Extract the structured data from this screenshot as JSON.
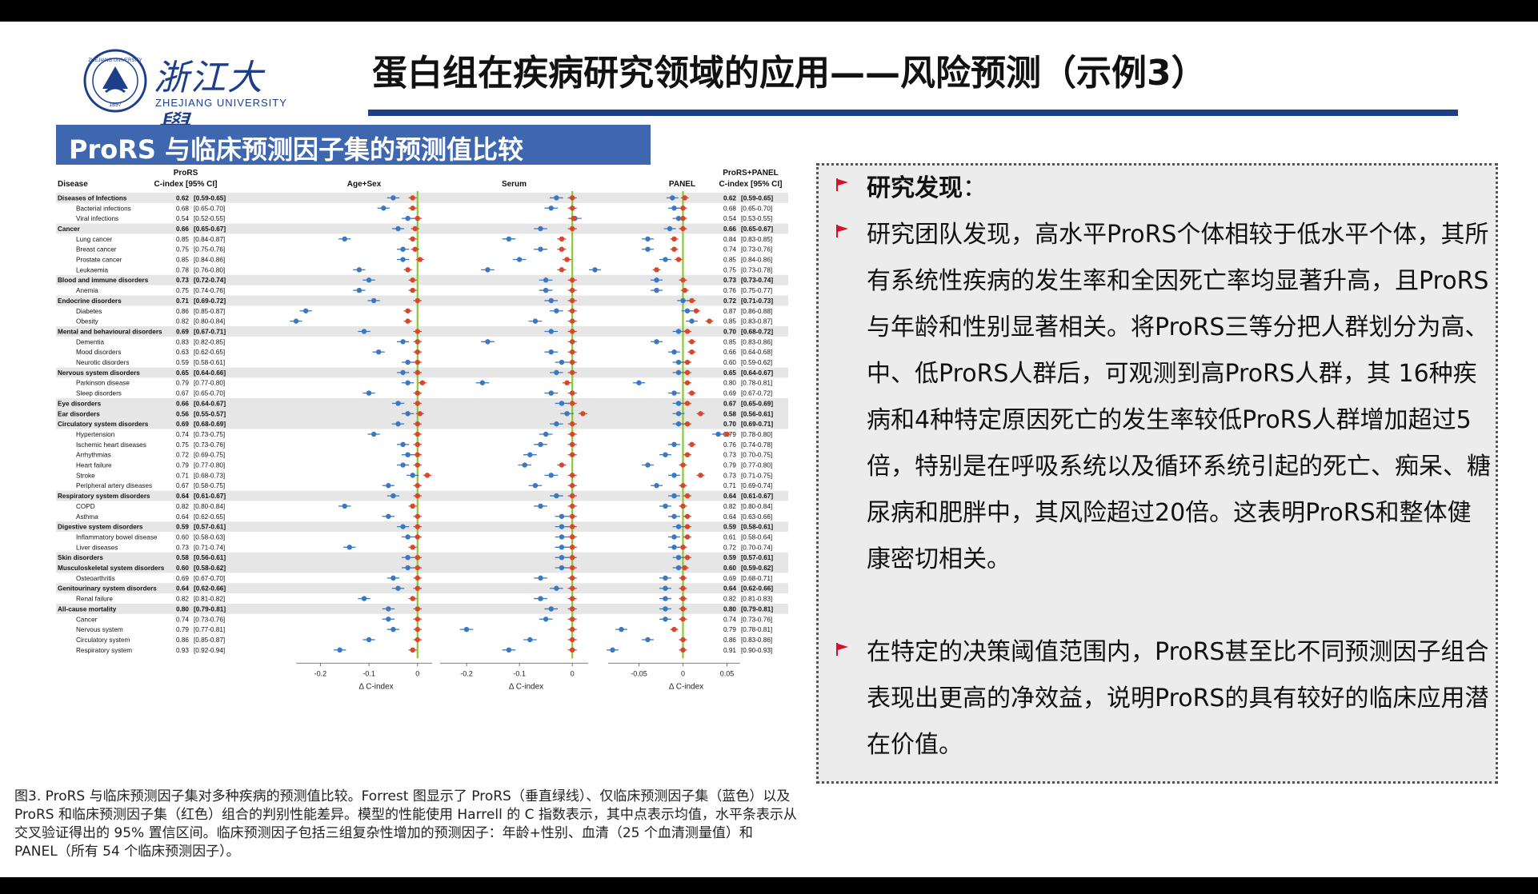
{
  "header": {
    "logo_text": "浙江大學",
    "logo_sub": "ZHEJIANG UNIVERSITY",
    "logo_seal_text": "ZHEJIANG UNIVERSITY",
    "logo_seal_year": "1897",
    "title": "蛋白组在疾病研究领域的应用——风险预测（示例3）"
  },
  "subtitle": "ProRS 与临床预测因子集的预测值比较",
  "figure": {
    "col_disease": "Disease",
    "col_prors_1": "ProRS",
    "col_prors_2": "C-index [95% CI]",
    "col_combo_1": "ProRS+PANEL",
    "col_combo_2": "C-index [95% CI]",
    "panel_titles": [
      "Age+Sex",
      "Serum",
      "PANEL"
    ],
    "x_axis_label": "Δ C-index",
    "x_ticks": [
      [
        "-0.2",
        "-0.1",
        "0"
      ],
      [
        "-0.2",
        "-0.1",
        "0"
      ],
      [
        "-0.05",
        "0",
        "0.05"
      ]
    ]
  },
  "chart_data": {
    "type": "forest",
    "x_label": "Δ C-index",
    "grid": false,
    "rows": [
      {
        "disease": "Diseases of Infections",
        "group": true,
        "prors": "0.62",
        "prors_ci": "[0.59-0.65]",
        "combo": "0.62",
        "combo_ci": "[0.59-0.65]",
        "d": [
          [
            -0.05,
            -0.01
          ],
          [
            -0.03,
            0.0
          ],
          [
            -0.012,
            0.002
          ]
        ]
      },
      {
        "disease": "Bacterial infections",
        "group": false,
        "prors": "0.68",
        "prors_ci": "[0.65-0.70]",
        "combo": "0.68",
        "combo_ci": "[0.65-0.70]",
        "d": [
          [
            -0.07,
            -0.01
          ],
          [
            -0.04,
            0.0
          ],
          [
            -0.01,
            0.0
          ]
        ]
      },
      {
        "disease": "Viral infections",
        "group": false,
        "prors": "0.54",
        "prors_ci": "[0.52-0.55]",
        "combo": "0.54",
        "combo_ci": "[0.53-0.55]",
        "d": [
          [
            -0.02,
            0.0
          ],
          [
            0.005,
            0.002
          ],
          [
            -0.005,
            0.0
          ]
        ]
      },
      {
        "disease": "Cancer",
        "group": true,
        "prors": "0.66",
        "prors_ci": "[0.65-0.67]",
        "combo": "0.66",
        "combo_ci": "[0.65-0.67]",
        "d": [
          [
            -0.04,
            -0.005
          ],
          [
            -0.06,
            0.0
          ],
          [
            -0.015,
            0.0
          ]
        ]
      },
      {
        "disease": "Lung cancer",
        "group": false,
        "prors": "0.85",
        "prors_ci": "[0.84-0.87]",
        "combo": "0.84",
        "combo_ci": "[0.83-0.85]",
        "d": [
          [
            -0.15,
            -0.01
          ],
          [
            -0.12,
            -0.02
          ],
          [
            -0.04,
            -0.01
          ]
        ]
      },
      {
        "disease": "Breast cancer",
        "group": false,
        "prors": "0.75",
        "prors_ci": "[0.75-0.76]",
        "combo": "0.74",
        "combo_ci": "[0.73-0.76]",
        "d": [
          [
            -0.03,
            -0.005
          ],
          [
            -0.06,
            -0.02
          ],
          [
            -0.04,
            -0.01
          ]
        ]
      },
      {
        "disease": "Prostate cancer",
        "group": false,
        "prors": "0.85",
        "prors_ci": "[0.84-0.86]",
        "combo": "0.85",
        "combo_ci": "[0.84-0.86]",
        "d": [
          [
            -0.03,
            0.005
          ],
          [
            -0.1,
            -0.01
          ],
          [
            -0.02,
            -0.005
          ]
        ]
      },
      {
        "disease": "Leukaemia",
        "group": false,
        "prors": "0.78",
        "prors_ci": "[0.76-0.80]",
        "combo": "0.75",
        "combo_ci": "[0.73-0.78]",
        "d": [
          [
            -0.12,
            -0.02
          ],
          [
            -0.16,
            -0.02
          ],
          [
            -0.1,
            -0.03
          ]
        ]
      },
      {
        "disease": "Blood and immune disorders",
        "group": true,
        "prors": "0.73",
        "prors_ci": "[0.72-0.74]",
        "combo": "0.73",
        "combo_ci": "[0.73-0.74]",
        "d": [
          [
            -0.1,
            -0.01
          ],
          [
            -0.05,
            0.0
          ],
          [
            -0.03,
            0.0
          ]
        ]
      },
      {
        "disease": "Anemia",
        "group": false,
        "prors": "0.75",
        "prors_ci": "[0.74-0.76]",
        "combo": "0.76",
        "combo_ci": "[0.75-0.77]",
        "d": [
          [
            -0.12,
            -0.01
          ],
          [
            -0.05,
            0.0
          ],
          [
            -0.03,
            0.002
          ]
        ]
      },
      {
        "disease": "Endocrine disorders",
        "group": true,
        "prors": "0.71",
        "prors_ci": "[0.69-0.72]",
        "combo": "0.72",
        "combo_ci": "[0.71-0.73]",
        "d": [
          [
            -0.09,
            0.0
          ],
          [
            -0.04,
            0.0
          ],
          [
            0.0,
            0.01
          ]
        ]
      },
      {
        "disease": "Diabetes",
        "group": false,
        "prors": "0.86",
        "prors_ci": "[0.85-0.87]",
        "combo": "0.87",
        "combo_ci": "[0.86-0.88]",
        "d": [
          [
            -0.23,
            -0.02
          ],
          [
            -0.03,
            0.0
          ],
          [
            0.005,
            0.015
          ]
        ]
      },
      {
        "disease": "Obesity",
        "group": false,
        "prors": "0.82",
        "prors_ci": "[0.80-0.84]",
        "combo": "0.85",
        "combo_ci": "[0.83-0.87]",
        "d": [
          [
            -0.25,
            -0.02
          ],
          [
            -0.07,
            0.0
          ],
          [
            0.01,
            0.03
          ]
        ]
      },
      {
        "disease": "Mental and behavioural disorders",
        "group": true,
        "prors": "0.69",
        "prors_ci": "[0.67-0.71]",
        "combo": "0.70",
        "combo_ci": "[0.68-0.72]",
        "d": [
          [
            -0.11,
            0.0
          ],
          [
            -0.04,
            0.0
          ],
          [
            -0.005,
            0.005
          ]
        ]
      },
      {
        "disease": "Dementia",
        "group": false,
        "prors": "0.83",
        "prors_ci": "[0.82-0.85]",
        "combo": "0.85",
        "combo_ci": "[0.83-0.86]",
        "d": [
          [
            -0.03,
            0.0
          ],
          [
            -0.16,
            0.0
          ],
          [
            -0.03,
            0.01
          ]
        ]
      },
      {
        "disease": "Mood disorders",
        "group": false,
        "prors": "0.63",
        "prors_ci": "[0.62-0.65]",
        "combo": "0.66",
        "combo_ci": "[0.64-0.68]",
        "d": [
          [
            -0.08,
            0.0
          ],
          [
            -0.04,
            0.0
          ],
          [
            -0.01,
            0.01
          ]
        ]
      },
      {
        "disease": "Neurotic disorders",
        "group": false,
        "prors": "0.59",
        "prors_ci": "[0.58-0.61]",
        "combo": "0.60",
        "combo_ci": "[0.59-0.62]",
        "d": [
          [
            -0.02,
            0.0
          ],
          [
            -0.02,
            0.0
          ],
          [
            -0.005,
            0.005
          ]
        ]
      },
      {
        "disease": "Nervous system disorders",
        "group": true,
        "prors": "0.65",
        "prors_ci": "[0.64-0.66]",
        "combo": "0.65",
        "combo_ci": "[0.64-0.67]",
        "d": [
          [
            -0.03,
            0.0
          ],
          [
            -0.03,
            0.0
          ],
          [
            -0.005,
            0.005
          ]
        ]
      },
      {
        "disease": "Parkinson disease",
        "group": false,
        "prors": "0.79",
        "prors_ci": "[0.77-0.80]",
        "combo": "0.80",
        "combo_ci": "[0.78-0.81]",
        "d": [
          [
            -0.02,
            0.01
          ],
          [
            -0.17,
            -0.01
          ],
          [
            -0.05,
            0.005
          ]
        ]
      },
      {
        "disease": "Sleep disorders",
        "group": false,
        "prors": "0.67",
        "prors_ci": "[0.65-0.70]",
        "combo": "0.69",
        "combo_ci": "[0.67-0.72]",
        "d": [
          [
            -0.1,
            0.0
          ],
          [
            -0.04,
            0.0
          ],
          [
            -0.01,
            0.01
          ]
        ]
      },
      {
        "disease": "Eye disorders",
        "group": true,
        "prors": "0.66",
        "prors_ci": "[0.64-0.67]",
        "combo": "0.67",
        "combo_ci": "[0.65-0.69]",
        "d": [
          [
            -0.04,
            0.0
          ],
          [
            -0.02,
            0.0
          ],
          [
            -0.005,
            0.005
          ]
        ]
      },
      {
        "disease": "Ear disorders",
        "group": true,
        "prors": "0.56",
        "prors_ci": "[0.55-0.57]",
        "combo": "0.58",
        "combo_ci": "[0.56-0.61]",
        "d": [
          [
            -0.02,
            0.005
          ],
          [
            -0.01,
            0.02
          ],
          [
            -0.005,
            0.02
          ]
        ]
      },
      {
        "disease": "Circulatory system disorders",
        "group": true,
        "prors": "0.69",
        "prors_ci": "[0.68-0.69]",
        "combo": "0.70",
        "combo_ci": "[0.69-0.71]",
        "d": [
          [
            -0.04,
            0.0
          ],
          [
            -0.03,
            0.0
          ],
          [
            -0.005,
            0.005
          ]
        ]
      },
      {
        "disease": "Hypertension",
        "group": false,
        "prors": "0.74",
        "prors_ci": "[0.73-0.75]",
        "combo": "0.79",
        "combo_ci": "[0.78-0.80]",
        "d": [
          [
            -0.09,
            0.0
          ],
          [
            -0.05,
            0.0
          ],
          [
            0.04,
            0.05
          ]
        ]
      },
      {
        "disease": "Ischemic heart diseases",
        "group": false,
        "prors": "0.75",
        "prors_ci": "[0.73-0.76]",
        "combo": "0.76",
        "combo_ci": "[0.74-0.78]",
        "d": [
          [
            -0.03,
            0.0
          ],
          [
            -0.06,
            0.0
          ],
          [
            -0.01,
            0.01
          ]
        ]
      },
      {
        "disease": "Arrhythmias",
        "group": false,
        "prors": "0.72",
        "prors_ci": "[0.69-0.75]",
        "combo": "0.73",
        "combo_ci": "[0.70-0.75]",
        "d": [
          [
            -0.02,
            0.0
          ],
          [
            -0.08,
            0.0
          ],
          [
            -0.02,
            0.005
          ]
        ]
      },
      {
        "disease": "Heart failure",
        "group": false,
        "prors": "0.79",
        "prors_ci": "[0.77-0.80]",
        "combo": "0.79",
        "combo_ci": "[0.77-0.80]",
        "d": [
          [
            -0.03,
            0.0
          ],
          [
            -0.09,
            -0.02
          ],
          [
            -0.04,
            0.0
          ]
        ]
      },
      {
        "disease": "Stroke",
        "group": false,
        "prors": "0.71",
        "prors_ci": "[0.68-0.73]",
        "combo": "0.73",
        "combo_ci": "[0.71-0.75]",
        "d": [
          [
            -0.01,
            0.02
          ],
          [
            -0.04,
            0.0
          ],
          [
            -0.01,
            0.02
          ]
        ]
      },
      {
        "disease": "Peripheral artery diseases",
        "group": false,
        "prors": "0.67",
        "prors_ci": "[0.58-0.75]",
        "combo": "0.71",
        "combo_ci": "[0.69-0.74]",
        "d": [
          [
            -0.06,
            0.0
          ],
          [
            -0.07,
            0.0
          ],
          [
            -0.03,
            0.0
          ]
        ]
      },
      {
        "disease": "Respiratory system disorders",
        "group": true,
        "prors": "0.64",
        "prors_ci": "[0.61-0.67]",
        "combo": "0.64",
        "combo_ci": "[0.61-0.67]",
        "d": [
          [
            -0.05,
            0.0
          ],
          [
            -0.03,
            0.0
          ],
          [
            -0.01,
            0.005
          ]
        ]
      },
      {
        "disease": "COPD",
        "group": false,
        "prors": "0.82",
        "prors_ci": "[0.80-0.84]",
        "combo": "0.82",
        "combo_ci": "[0.80-0.84]",
        "d": [
          [
            -0.15,
            -0.01
          ],
          [
            -0.06,
            0.0
          ],
          [
            -0.02,
            0.0
          ]
        ]
      },
      {
        "disease": "Asthma",
        "group": false,
        "prors": "0.64",
        "prors_ci": "[0.62-0.65]",
        "combo": "0.64",
        "combo_ci": "[0.63-0.66]",
        "d": [
          [
            -0.06,
            0.0
          ],
          [
            -0.02,
            0.0
          ],
          [
            -0.01,
            0.005
          ]
        ]
      },
      {
        "disease": "Digestive system disorders",
        "group": true,
        "prors": "0.59",
        "prors_ci": "[0.57-0.61]",
        "combo": "0.59",
        "combo_ci": "[0.58-0.61]",
        "d": [
          [
            -0.03,
            0.0
          ],
          [
            -0.02,
            0.0
          ],
          [
            -0.005,
            0.005
          ]
        ]
      },
      {
        "disease": "Inflammatory bowel disease",
        "group": false,
        "prors": "0.60",
        "prors_ci": "[0.58-0.63]",
        "combo": "0.61",
        "combo_ci": "[0.58-0.64]",
        "d": [
          [
            -0.02,
            0.0
          ],
          [
            -0.02,
            0.0
          ],
          [
            -0.01,
            0.005
          ]
        ]
      },
      {
        "disease": "Liver diseases",
        "group": false,
        "prors": "0.73",
        "prors_ci": "[0.71-0.74]",
        "combo": "0.72",
        "combo_ci": "[0.70-0.74]",
        "d": [
          [
            -0.14,
            -0.01
          ],
          [
            -0.02,
            0.0
          ],
          [
            -0.01,
            0.0
          ]
        ]
      },
      {
        "disease": "Skin disorders",
        "group": true,
        "prors": "0.58",
        "prors_ci": "[0.56-0.61]",
        "combo": "0.59",
        "combo_ci": "[0.57-0.61]",
        "d": [
          [
            -0.02,
            0.0
          ],
          [
            -0.02,
            0.0
          ],
          [
            -0.005,
            0.005
          ]
        ]
      },
      {
        "disease": "Musculoskeletal system disorders",
        "group": true,
        "prors": "0.60",
        "prors_ci": "[0.58-0.62]",
        "combo": "0.60",
        "combo_ci": "[0.59-0.62]",
        "d": [
          [
            -0.02,
            0.0
          ],
          [
            -0.02,
            0.0
          ],
          [
            -0.005,
            0.002
          ]
        ]
      },
      {
        "disease": "Osteoarthritis",
        "group": false,
        "prors": "0.69",
        "prors_ci": "[0.67-0.70]",
        "combo": "0.69",
        "combo_ci": "[0.68-0.71]",
        "d": [
          [
            -0.05,
            0.0
          ],
          [
            -0.06,
            0.0
          ],
          [
            -0.02,
            0.0
          ]
        ]
      },
      {
        "disease": "Genitourinary system disorders",
        "group": true,
        "prors": "0.64",
        "prors_ci": "[0.62-0.66]",
        "combo": "0.64",
        "combo_ci": "[0.62-0.66]",
        "d": [
          [
            -0.04,
            0.0
          ],
          [
            -0.03,
            0.0
          ],
          [
            -0.02,
            0.0
          ]
        ]
      },
      {
        "disease": "Renal failure",
        "group": false,
        "prors": "0.82",
        "prors_ci": "[0.81-0.82]",
        "combo": "0.82",
        "combo_ci": "[0.81-0.83]",
        "d": [
          [
            -0.11,
            -0.01
          ],
          [
            -0.06,
            0.0
          ],
          [
            -0.02,
            0.0
          ]
        ]
      },
      {
        "disease": "All-cause mortality",
        "group": true,
        "prors": "0.80",
        "prors_ci": "[0.79-0.81]",
        "combo": "0.80",
        "combo_ci": "[0.79-0.81]",
        "d": [
          [
            -0.06,
            0.0
          ],
          [
            -0.04,
            0.0
          ],
          [
            -0.02,
            0.0
          ]
        ]
      },
      {
        "disease": "Cancer",
        "group": false,
        "prors": "0.74",
        "prors_ci": "[0.73-0.76]",
        "combo": "0.74",
        "combo_ci": "[0.73-0.76]",
        "d": [
          [
            -0.06,
            0.0
          ],
          [
            -0.05,
            0.0
          ],
          [
            -0.02,
            0.0
          ]
        ]
      },
      {
        "disease": "Nervous system",
        "group": false,
        "prors": "0.79",
        "prors_ci": "[0.77-0.81]",
        "combo": "0.79",
        "combo_ci": "[0.78-0.81]",
        "d": [
          [
            -0.05,
            0.0
          ],
          [
            -0.2,
            0.0
          ],
          [
            -0.07,
            -0.01
          ]
        ]
      },
      {
        "disease": "Circulatory system",
        "group": false,
        "prors": "0.86",
        "prors_ci": "[0.85-0.87]",
        "combo": "0.86",
        "combo_ci": "[0.83-0.86]",
        "d": [
          [
            -0.1,
            0.0
          ],
          [
            -0.08,
            0.0
          ],
          [
            -0.04,
            0.0
          ]
        ]
      },
      {
        "disease": "Respiratory system",
        "group": false,
        "prors": "0.93",
        "prors_ci": "[0.92-0.94]",
        "combo": "0.91",
        "combo_ci": "[0.90-0.93]",
        "d": [
          [
            -0.16,
            -0.01
          ],
          [
            -0.12,
            0.0
          ],
          [
            -0.08,
            0.0
          ]
        ]
      }
    ]
  },
  "caption": {
    "text": "图3. ProRS 与临床预测因子集对多种疾病的预测值比较。Forrest 图显示了 ProRS（垂直绿线）、仅临床预测因子集（蓝色）以及 ProRS 和临床预测因子集（红色）组合的判别性能差异。模型的性能使用 Harrell 的 C 指数表示，其中点表示均值，水平条表示从交叉验证得出的 95% 置信区间。临床预测因子包括三组复杂性增加的预测因子：年龄+性别、血清（25 个血清测量值）和 PANEL（所有 54 个临床预测因子）。"
  },
  "findings": {
    "heading": "研究发现",
    "heading_colon": "：",
    "para1": "研究团队发现，高水平ProRS个体相较于低水平个体，其所有系统性疾病的发生率和全因死亡率均显著升高，且ProRS与年龄和性别显著相关。将ProRS三等分把人群划分为高、中、低ProRS人群后，可观测到高ProRS人群，其 16种疾病和4种特定原因死亡的发生率较低ProRS人群增加超过5倍，特别是在呼吸系统以及循环系统引起的死亡、痴呆、糖尿病和肥胖中，其风险超过20倍。这表明ProRS和整体健康密切相关。",
    "para2": "在特定的决策阈值范围内，ProRS甚至比不同预测因子组合表现出更高的净效益，说明ProRS的具有较好的临床应用潜在价值。"
  },
  "colors": {
    "brand_blue": "#1d3f8a",
    "subtitle_bg": "#3f67b0",
    "clinical_only": "#3a78c2",
    "combined": "#d8462c",
    "prors_line": "#8cc63e",
    "flag_red": "#d8102c"
  }
}
